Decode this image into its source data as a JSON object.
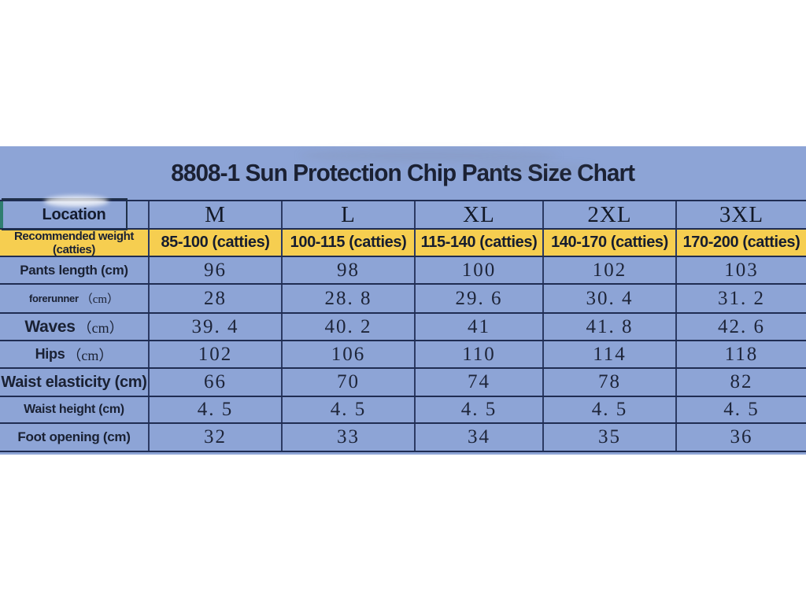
{
  "colors": {
    "panel_blue": "#8da4d6",
    "row_yellow": "#f6ce50",
    "line_navy": "#1f2c52",
    "teal_accent": "#2f7e70",
    "text_dark": "#1a2133"
  },
  "chart_data": {
    "type": "table",
    "title": "8808-1 Sun Protection Chip Pants Size Chart",
    "columns": [
      "Location",
      "M",
      "L",
      "XL",
      "2XL",
      "3XL"
    ],
    "weight_row": {
      "label": "Recommended weight (catties)",
      "values": [
        "85-100 (catties)",
        "100-115 (catties)",
        "115-140 (catties)",
        "140-170 (catties)",
        "170-200 (catties)"
      ]
    },
    "measurement_rows": [
      {
        "label": "Pants length (cm)",
        "suffix": "",
        "values": [
          "96",
          "98",
          "100",
          "102",
          "103"
        ]
      },
      {
        "label": "forerunner",
        "suffix": "（cm）",
        "values": [
          "28",
          "28. 8",
          "29. 6",
          "30. 4",
          "31. 2"
        ]
      },
      {
        "label": "Waves",
        "suffix": "（cm）",
        "values": [
          "39. 4",
          "40. 2",
          "41",
          "41. 8",
          "42. 6"
        ]
      },
      {
        "label": "Hips",
        "suffix": "（cm）",
        "values": [
          "102",
          "106",
          "110",
          "114",
          "118"
        ]
      },
      {
        "label": "Waist elasticity (cm)",
        "suffix": "",
        "values": [
          "66",
          "70",
          "74",
          "78",
          "82"
        ]
      },
      {
        "label": "Waist height (cm)",
        "suffix": "",
        "values": [
          "4. 5",
          "4. 5",
          "4. 5",
          "4. 5",
          "4. 5"
        ]
      },
      {
        "label": "Foot opening (cm)",
        "suffix": "",
        "values": [
          "32",
          "33",
          "34",
          "35",
          "36"
        ]
      }
    ],
    "layout": {
      "grid": true,
      "header_position": "top-row",
      "units": "cm"
    }
  }
}
